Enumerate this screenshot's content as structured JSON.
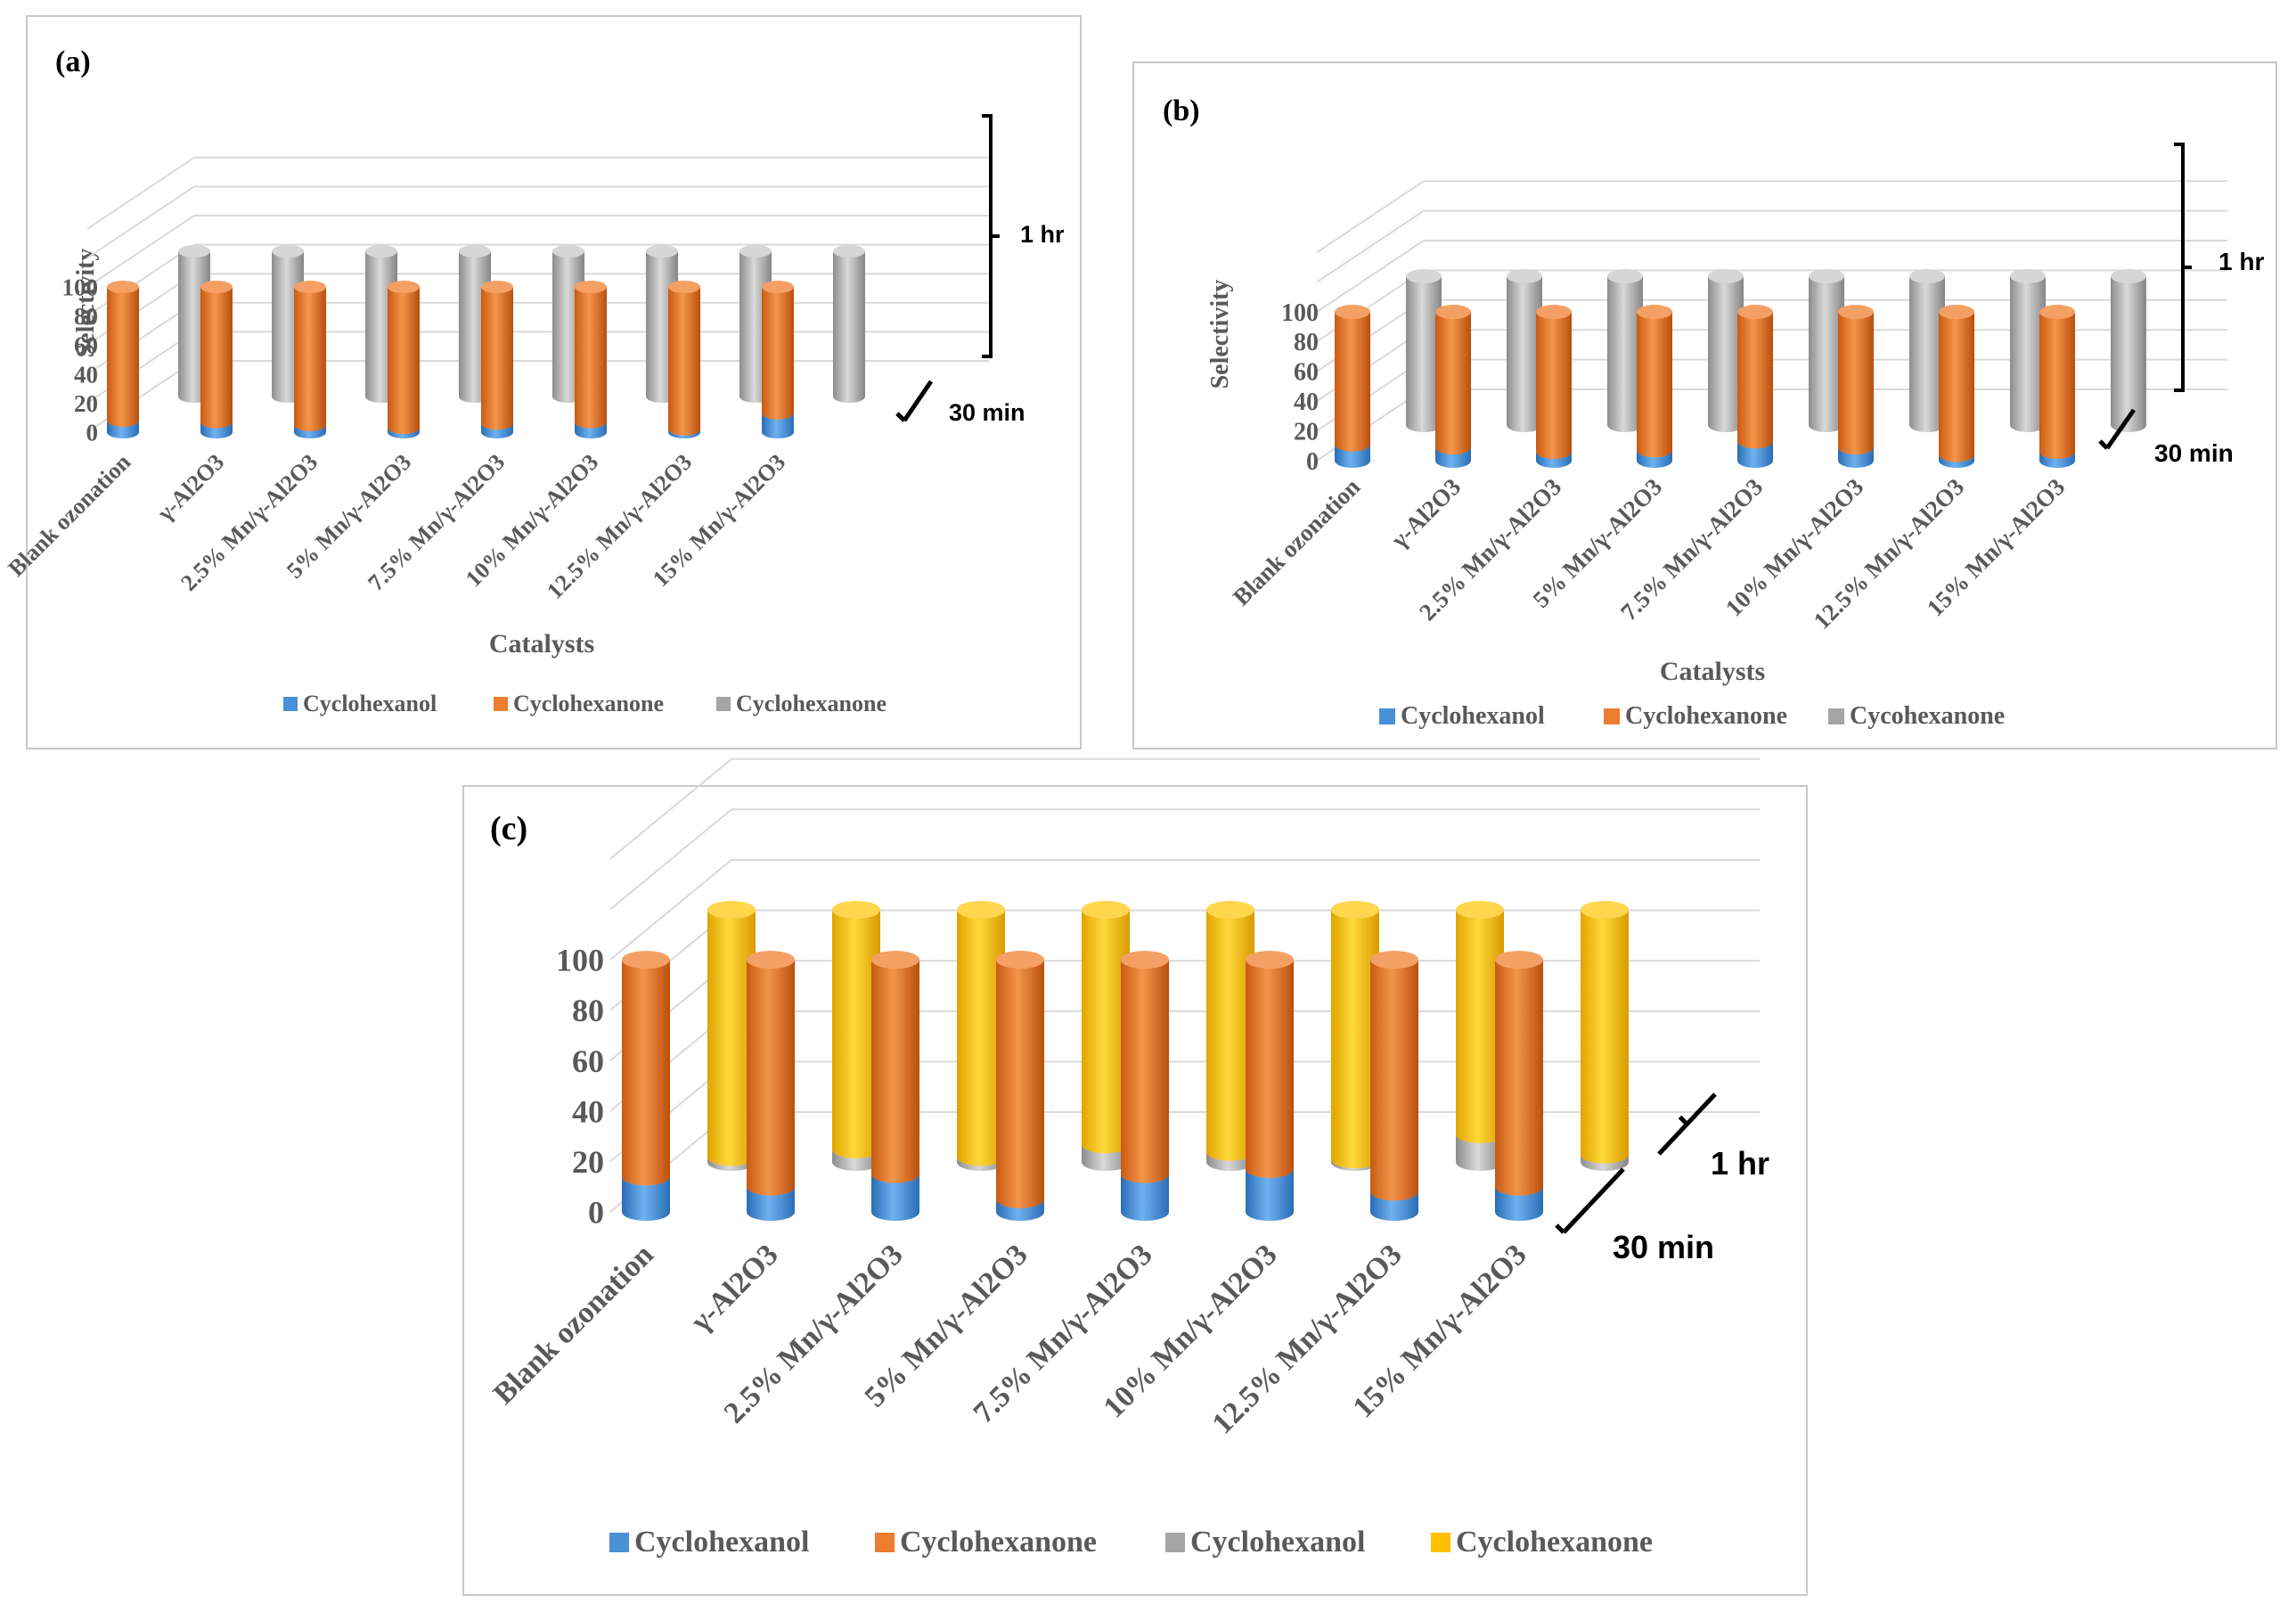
{
  "panels": [
    {
      "label": "(a)",
      "ylabel": "Selectivity",
      "xlabel": "Catalysts",
      "y_ticks": [
        "0",
        "20",
        "40",
        "60",
        "80",
        "100"
      ],
      "ylim": [
        0,
        100
      ],
      "categories": [
        "Blank ozonation",
        "γ-Al2O3",
        "2.5% Mn/γ-Al2O3",
        "5% Mn/γ-Al2O3",
        "7.5% Mn/γ-Al2O3",
        "10% Mn/γ-Al2O3",
        "12.5% Mn/γ-Al2O3",
        "15% Mn/γ-Al2O3"
      ],
      "bracket_back": "1 hr",
      "bracket_front": "30 min",
      "legend": [
        "Cyclohexanol",
        "Cyclohexanone",
        "Cyclohexanone"
      ]
    },
    {
      "label": "(b)",
      "ylabel": "Selectivity",
      "xlabel": "Catalysts",
      "y_ticks": [
        "0",
        "20",
        "40",
        "60",
        "80",
        "100"
      ],
      "ylim": [
        0,
        100
      ],
      "categories": [
        "Blank ozonation",
        "γ-Al2O3",
        "2.5% Mn/γ-Al2O3",
        "5% Mn/γ-Al2O3",
        "7.5% Mn/γ-Al2O3",
        "10% Mn/γ-Al2O3",
        "12.5% Mn/γ-Al2O3",
        "15% Mn/γ-Al2O3"
      ],
      "bracket_back": "1 hr",
      "bracket_front": "30 min",
      "legend": [
        "Cyclohexanol",
        "Cyclohexanone",
        "Cycohexanone"
      ]
    },
    {
      "label": "(c)",
      "ylabel": "",
      "xlabel": "",
      "y_ticks": [
        "0",
        "20",
        "40",
        "60",
        "80",
        "100"
      ],
      "ylim": [
        0,
        100
      ],
      "categories": [
        "Blank ozonation",
        "γ-Al2O3",
        "2.5% Mn/γ-Al2O3",
        "5% Mn/γ-Al2O3",
        "7.5% Mn/γ-Al2O3",
        "10% Mn/γ-Al2O3",
        "12.5% Mn/γ-Al2O3",
        "15% Mn/γ-Al2O3"
      ],
      "bracket_back": "1 hr",
      "bracket_front": "30 min",
      "legend": [
        "Cyclohexanol",
        "Cyclohexanone",
        "Cyclohexanol",
        "Cyclohexanone"
      ]
    }
  ],
  "chart_data": [
    {
      "type": "bar",
      "title": "(a)",
      "xlabel": "Catalysts",
      "ylabel": "Selectivity",
      "ylim": [
        0,
        100
      ],
      "categories": [
        "Blank ozonation",
        "γ-Al2O3",
        "2.5% Mn/γ-Al2O3",
        "5% Mn/γ-Al2O3",
        "7.5% Mn/γ-Al2O3",
        "10% Mn/γ-Al2O3",
        "12.5% Mn/γ-Al2O3",
        "15% Mn/γ-Al2O3"
      ],
      "series": [
        {
          "name": "Cyclohexanol",
          "time": "30 min",
          "color": "#4a90d9",
          "values": [
            8,
            7,
            5,
            3,
            6,
            7,
            2,
            13
          ]
        },
        {
          "name": "Cyclohexanone",
          "time": "30 min",
          "color": "#ed7d31",
          "values": [
            92,
            93,
            95,
            97,
            94,
            93,
            98,
            87
          ]
        },
        {
          "name": "Cyclohexanone",
          "time": "1 hr",
          "color": "#a5a5a5",
          "values": [
            100,
            100,
            100,
            100,
            100,
            100,
            100,
            100
          ]
        }
      ]
    },
    {
      "type": "bar",
      "title": "(b)",
      "xlabel": "Catalysts",
      "ylabel": "Selectivity",
      "ylim": [
        0,
        100
      ],
      "categories": [
        "Blank ozonation",
        "γ-Al2O3",
        "2.5% Mn/γ-Al2O3",
        "5% Mn/γ-Al2O3",
        "7.5% Mn/γ-Al2O3",
        "10% Mn/γ-Al2O3",
        "12.5% Mn/γ-Al2O3",
        "15% Mn/γ-Al2O3"
      ],
      "series": [
        {
          "name": "Cyclohexanol",
          "time": "30 min",
          "color": "#4a90d9",
          "values": [
            11,
            9,
            6,
            7,
            13,
            9,
            4,
            6
          ]
        },
        {
          "name": "Cyclohexanone",
          "time": "30 min",
          "color": "#ed7d31",
          "values": [
            89,
            91,
            94,
            93,
            87,
            91,
            96,
            94
          ]
        },
        {
          "name": "Cycohexanone",
          "time": "1 hr",
          "color": "#a5a5a5",
          "values": [
            100,
            100,
            100,
            100,
            100,
            100,
            100,
            100
          ]
        }
      ]
    },
    {
      "type": "bar",
      "title": "(c)",
      "xlabel": "",
      "ylabel": "",
      "ylim": [
        0,
        100
      ],
      "categories": [
        "Blank ozonation",
        "γ-Al2O3",
        "2.5% Mn/γ-Al2O3",
        "5% Mn/γ-Al2O3",
        "7.5% Mn/γ-Al2O3",
        "10% Mn/γ-Al2O3",
        "12.5% Mn/γ-Al2O3",
        "15% Mn/γ-Al2O3"
      ],
      "series": [
        {
          "name": "Cyclohexanol",
          "time": "30 min",
          "color": "#4a90d9",
          "values": [
            14,
            10,
            15,
            5,
            15,
            17,
            8,
            10
          ]
        },
        {
          "name": "Cyclohexanone",
          "time": "30 min",
          "color": "#ed7d31",
          "values": [
            86,
            90,
            85,
            95,
            85,
            83,
            92,
            90
          ]
        },
        {
          "name": "Cyclohexanol",
          "time": "1 hr",
          "color": "#a5a5a5",
          "values": [
            2,
            5,
            2,
            7,
            4,
            1,
            11,
            3
          ]
        },
        {
          "name": "Cyclohexanone",
          "time": "1 hr",
          "color": "#ffc000",
          "values": [
            98,
            95,
            98,
            93,
            96,
            99,
            89,
            97
          ]
        }
      ]
    }
  ]
}
